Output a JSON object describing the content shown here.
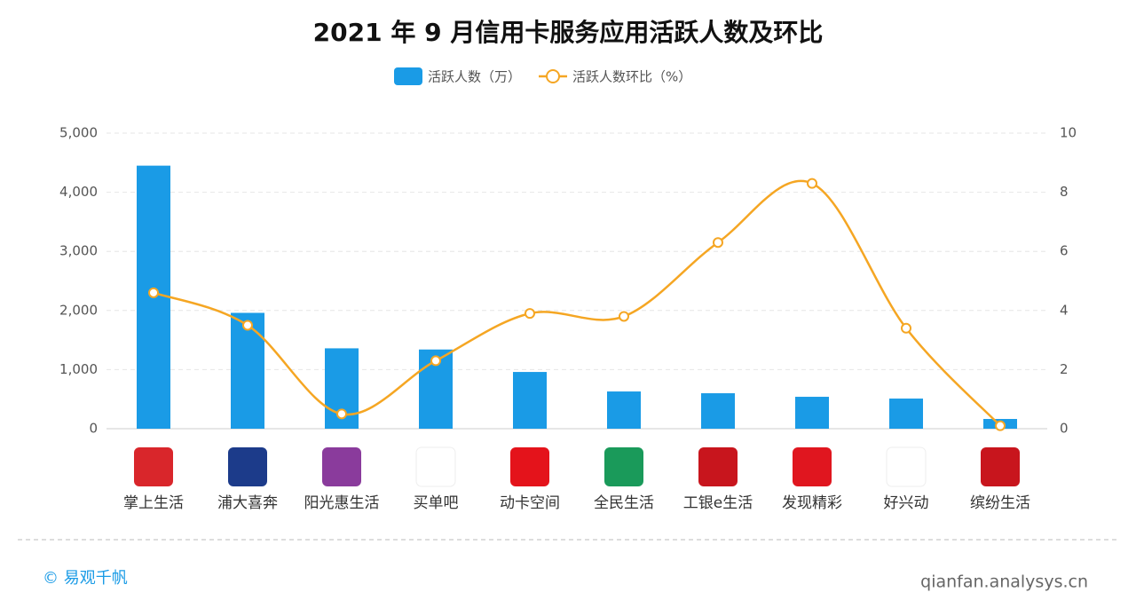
{
  "chart_data": {
    "type": "bar-line",
    "title": "2021 年 9 月信用卡服务应用活跃人数及环比",
    "categories": [
      "掌上生活",
      "浦大喜奔",
      "阳光惠生活",
      "买单吧",
      "动卡空间",
      "全民生活",
      "工银e生活",
      "发现精彩",
      "好兴动",
      "缤纷生活"
    ],
    "series": [
      {
        "name": "活跃人数（万）",
        "type": "bar",
        "color": "#1a9be6",
        "values": [
          4450,
          1960,
          1360,
          1340,
          960,
          630,
          600,
          540,
          510,
          165
        ]
      },
      {
        "name": "活跃人数环比（%）",
        "type": "line",
        "axis": "y2",
        "color": "#f5a623",
        "values": [
          4.6,
          3.5,
          0.5,
          2.3,
          3.9,
          3.8,
          6.3,
          8.3,
          3.4,
          0.1
        ]
      }
    ],
    "ylim": [
      0,
      5000
    ],
    "yticks": [
      0,
      {
        "value": 1000,
        "label": "1,000"
      },
      {
        "value": 2000,
        "label": "2,000"
      },
      {
        "value": 3000,
        "label": "3,000"
      },
      {
        "value": 4000,
        "label": "4,000"
      },
      {
        "value": 5000,
        "label": "5,000"
      }
    ],
    "y2lim": [
      0,
      10
    ],
    "y2ticks": [
      0,
      2,
      4,
      6,
      8,
      10
    ],
    "grid": true,
    "legend": "top"
  },
  "footer": {
    "copyright": "© 易观千帆",
    "url": "qianfan.analysys.cn"
  }
}
